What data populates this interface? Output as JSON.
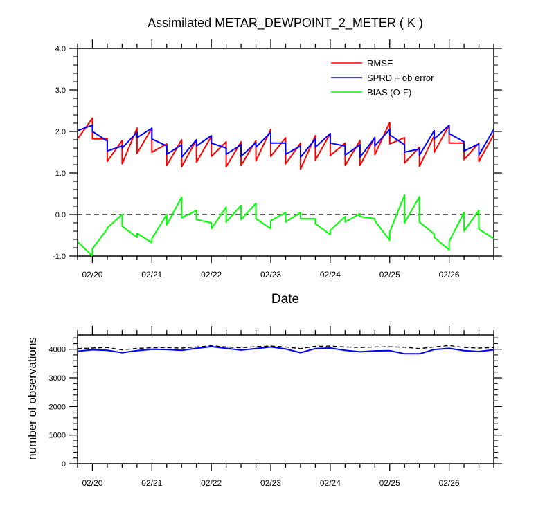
{
  "chart_data": [
    {
      "type": "line",
      "title": "Assimilated METAR_DEWPOINT_2_METER ( K )",
      "xlabel": "Date",
      "ylabel": "",
      "x_tick_labels": [
        "02/20",
        "02/21",
        "02/22",
        "02/23",
        "02/24",
        "02/25",
        "02/26"
      ],
      "y_tick_labels": [
        "4.0",
        "3.0",
        "2.0",
        "1.0",
        "0.0",
        "-1.0"
      ],
      "ylim": [
        -1.0,
        4.0
      ],
      "xlim": [
        -0.25,
        6.75
      ],
      "grid": false,
      "legend_position": "top-right",
      "reference_line": {
        "y": 0.0,
        "style": "dashed"
      },
      "series": [
        {
          "name": "RMSE",
          "color": "#ff0000",
          "x": [
            -0.25,
            0.0,
            0.0,
            0.25,
            0.25,
            0.5,
            0.5,
            0.75,
            0.75,
            1.0,
            1.0,
            1.25,
            1.25,
            1.5,
            1.5,
            1.75,
            1.75,
            2.0,
            2.0,
            2.25,
            2.25,
            2.5,
            2.5,
            2.75,
            2.75,
            3.0,
            3.0,
            3.25,
            3.25,
            3.5,
            3.5,
            3.75,
            3.75,
            4.0,
            4.0,
            4.25,
            4.25,
            4.5,
            4.5,
            4.75,
            4.75,
            5.0,
            5.0,
            5.25,
            5.25,
            5.5,
            5.5,
            5.75,
            5.75,
            6.0,
            6.0,
            6.25,
            6.25,
            6.5,
            6.5,
            6.75
          ],
          "values": [
            1.82,
            2.32,
            1.82,
            1.82,
            1.28,
            1.78,
            1.22,
            2.08,
            1.47,
            2.08,
            1.5,
            1.7,
            1.18,
            1.8,
            1.15,
            1.8,
            1.26,
            1.88,
            1.4,
            1.75,
            1.15,
            1.75,
            1.18,
            1.78,
            1.29,
            2.05,
            1.4,
            1.85,
            1.22,
            1.72,
            1.09,
            1.9,
            1.31,
            1.95,
            1.42,
            1.72,
            1.18,
            1.78,
            1.18,
            1.86,
            1.44,
            2.22,
            1.7,
            1.85,
            1.24,
            1.62,
            1.16,
            1.9,
            1.5,
            2.15,
            1.72,
            1.72,
            1.32,
            1.72,
            1.28,
            1.92
          ]
        },
        {
          "name": "SPRD + ob error",
          "color": "#0000ff",
          "x": [
            -0.25,
            0.0,
            0.0,
            0.25,
            0.25,
            0.5,
            0.5,
            0.75,
            0.75,
            1.0,
            1.0,
            1.25,
            1.25,
            1.5,
            1.5,
            1.75,
            1.75,
            2.0,
            2.0,
            2.25,
            2.25,
            2.5,
            2.5,
            2.75,
            2.75,
            3.0,
            3.0,
            3.25,
            3.25,
            3.5,
            3.5,
            3.75,
            3.75,
            4.0,
            4.0,
            4.25,
            4.25,
            4.5,
            4.5,
            4.75,
            4.75,
            5.0,
            5.0,
            5.25,
            5.25,
            5.5,
            5.5,
            5.75,
            5.75,
            6.0,
            6.0,
            6.25,
            6.25,
            6.5,
            6.5,
            6.75
          ],
          "values": [
            2.02,
            2.15,
            2.0,
            1.77,
            1.53,
            1.65,
            1.6,
            1.98,
            1.85,
            2.08,
            1.82,
            1.65,
            1.45,
            1.68,
            1.38,
            1.8,
            1.65,
            1.9,
            1.72,
            1.6,
            1.45,
            1.68,
            1.4,
            1.73,
            1.62,
            1.98,
            1.72,
            1.72,
            1.45,
            1.65,
            1.38,
            1.82,
            1.62,
            1.95,
            1.72,
            1.65,
            1.43,
            1.68,
            1.38,
            1.85,
            1.65,
            2.05,
            1.92,
            1.68,
            1.5,
            1.58,
            1.43,
            2.02,
            1.82,
            2.15,
            1.95,
            1.75,
            1.53,
            1.7,
            1.43,
            2.05
          ]
        },
        {
          "name": "BIAS (O-F)",
          "color": "#00ff00",
          "x": [
            -0.25,
            0.0,
            0.0,
            0.25,
            0.25,
            0.5,
            0.5,
            0.75,
            0.75,
            1.0,
            1.0,
            1.25,
            1.25,
            1.5,
            1.5,
            1.75,
            1.75,
            2.0,
            2.0,
            2.25,
            2.25,
            2.5,
            2.5,
            2.75,
            2.75,
            3.0,
            3.0,
            3.25,
            3.25,
            3.5,
            3.5,
            3.75,
            3.75,
            4.0,
            4.0,
            4.25,
            4.25,
            4.5,
            4.5,
            4.75,
            4.75,
            5.0,
            5.0,
            5.25,
            5.25,
            5.5,
            5.5,
            5.75,
            5.75,
            6.0,
            6.0,
            6.25,
            6.25,
            6.5,
            6.5,
            6.75
          ],
          "values": [
            -0.65,
            -1.0,
            -0.82,
            -0.35,
            -0.32,
            0.0,
            -0.28,
            -0.55,
            -0.45,
            -0.68,
            -0.58,
            0.0,
            -0.25,
            0.42,
            -0.08,
            0.1,
            -0.12,
            -0.2,
            -0.34,
            0.18,
            -0.18,
            0.22,
            -0.12,
            0.27,
            -0.1,
            -0.34,
            -0.15,
            0.05,
            -0.18,
            0.05,
            -0.1,
            -0.1,
            -0.22,
            -0.48,
            -0.38,
            -0.05,
            -0.18,
            0.02,
            -0.05,
            -0.1,
            -0.15,
            -0.62,
            -0.42,
            0.47,
            -0.2,
            0.43,
            -0.18,
            -0.47,
            -0.55,
            -0.85,
            -0.65,
            0.05,
            -0.4,
            0.1,
            -0.35,
            -0.58
          ]
        }
      ]
    },
    {
      "type": "line",
      "title": "",
      "xlabel": "",
      "ylabel": "number of observations",
      "x_tick_labels": [
        "02/20",
        "02/21",
        "02/22",
        "02/23",
        "02/24",
        "02/25",
        "02/26"
      ],
      "y_tick_labels": [
        "4000",
        "3000",
        "2000",
        "1000",
        "0"
      ],
      "ylim": [
        0,
        4500
      ],
      "xlim": [
        -0.25,
        6.75
      ],
      "grid": false,
      "legend_position": "none",
      "series": [
        {
          "color": "#000000",
          "style": "dashed",
          "x": [
            -0.25,
            0.0,
            0.25,
            0.5,
            0.75,
            1.0,
            1.25,
            1.5,
            1.75,
            2.0,
            2.25,
            2.5,
            2.75,
            3.0,
            3.25,
            3.5,
            3.75,
            4.0,
            4.25,
            4.5,
            4.75,
            5.0,
            5.25,
            5.5,
            5.75,
            6.0,
            6.25,
            6.5,
            6.75
          ],
          "values": [
            4020,
            4040,
            4060,
            3980,
            4030,
            4050,
            4055,
            4040,
            4080,
            4120,
            4080,
            4050,
            4090,
            4110,
            4080,
            4020,
            4100,
            4110,
            4080,
            4060,
            4080,
            4085,
            4070,
            4020,
            4080,
            4130,
            4060,
            4040,
            4060
          ]
        },
        {
          "color": "#0000ff",
          "style": "solid",
          "x": [
            -0.25,
            0.0,
            0.25,
            0.5,
            0.75,
            1.0,
            1.25,
            1.5,
            1.75,
            2.0,
            2.25,
            2.5,
            2.75,
            3.0,
            3.25,
            3.5,
            3.75,
            4.0,
            4.25,
            4.5,
            4.75,
            5.0,
            5.25,
            5.5,
            5.75,
            6.0,
            6.25,
            6.5,
            6.75
          ],
          "values": [
            3930,
            3980,
            3960,
            3880,
            3950,
            4000,
            3990,
            3960,
            4030,
            4090,
            4030,
            3970,
            4020,
            4080,
            4010,
            3880,
            4020,
            4040,
            3960,
            3910,
            3940,
            3950,
            3840,
            3840,
            3990,
            4030,
            3950,
            3920,
            3980
          ]
        }
      ]
    }
  ]
}
